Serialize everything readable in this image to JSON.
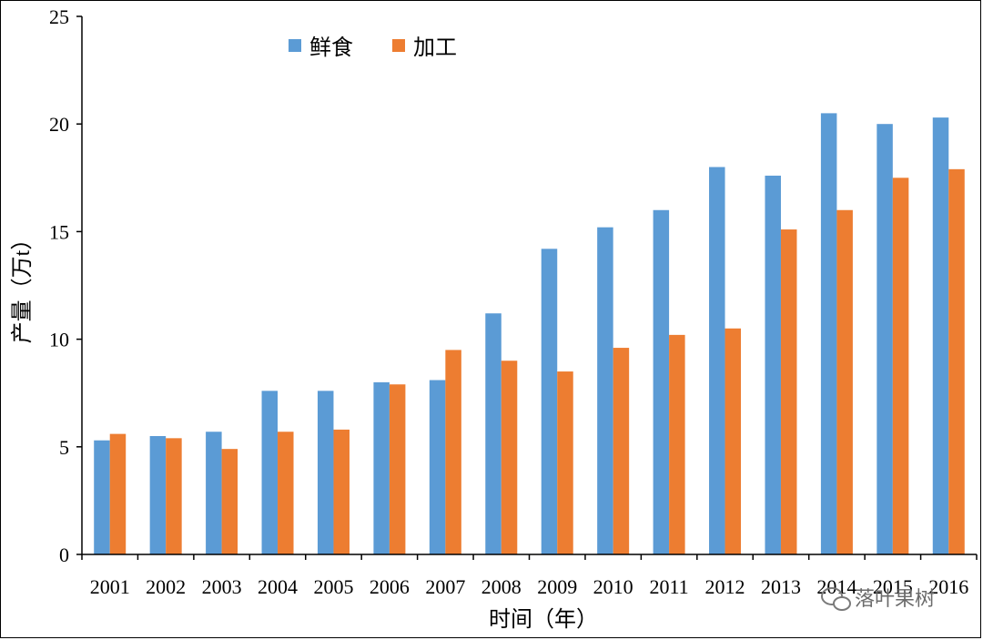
{
  "chart_data": {
    "type": "bar",
    "categories": [
      "2001",
      "2002",
      "2003",
      "2004",
      "2005",
      "2006",
      "2007",
      "2008",
      "2009",
      "2010",
      "2011",
      "2012",
      "2013",
      "2014",
      "2015",
      "2016"
    ],
    "series": [
      {
        "name": "鲜食",
        "color": "#5b9bd5",
        "values": [
          5.3,
          5.5,
          5.7,
          7.6,
          7.6,
          8.0,
          8.1,
          11.2,
          14.2,
          15.2,
          16.0,
          18.0,
          17.6,
          20.5,
          20.0,
          20.3
        ]
      },
      {
        "name": "加工",
        "color": "#ed7d31",
        "values": [
          5.6,
          5.4,
          4.9,
          5.7,
          5.8,
          7.9,
          9.5,
          9.0,
          8.5,
          9.6,
          10.2,
          10.5,
          15.1,
          16.0,
          17.5,
          17.9
        ]
      }
    ],
    "xlabel": "时间（年）",
    "ylabel": "产量（万t）",
    "ylim": [
      0,
      25
    ],
    "yticks": [
      0,
      5,
      10,
      15,
      20,
      25
    ],
    "grid": false,
    "legend": "top-left"
  },
  "watermark": {
    "text": "落叶果树",
    "icon": "wechat-icon"
  }
}
